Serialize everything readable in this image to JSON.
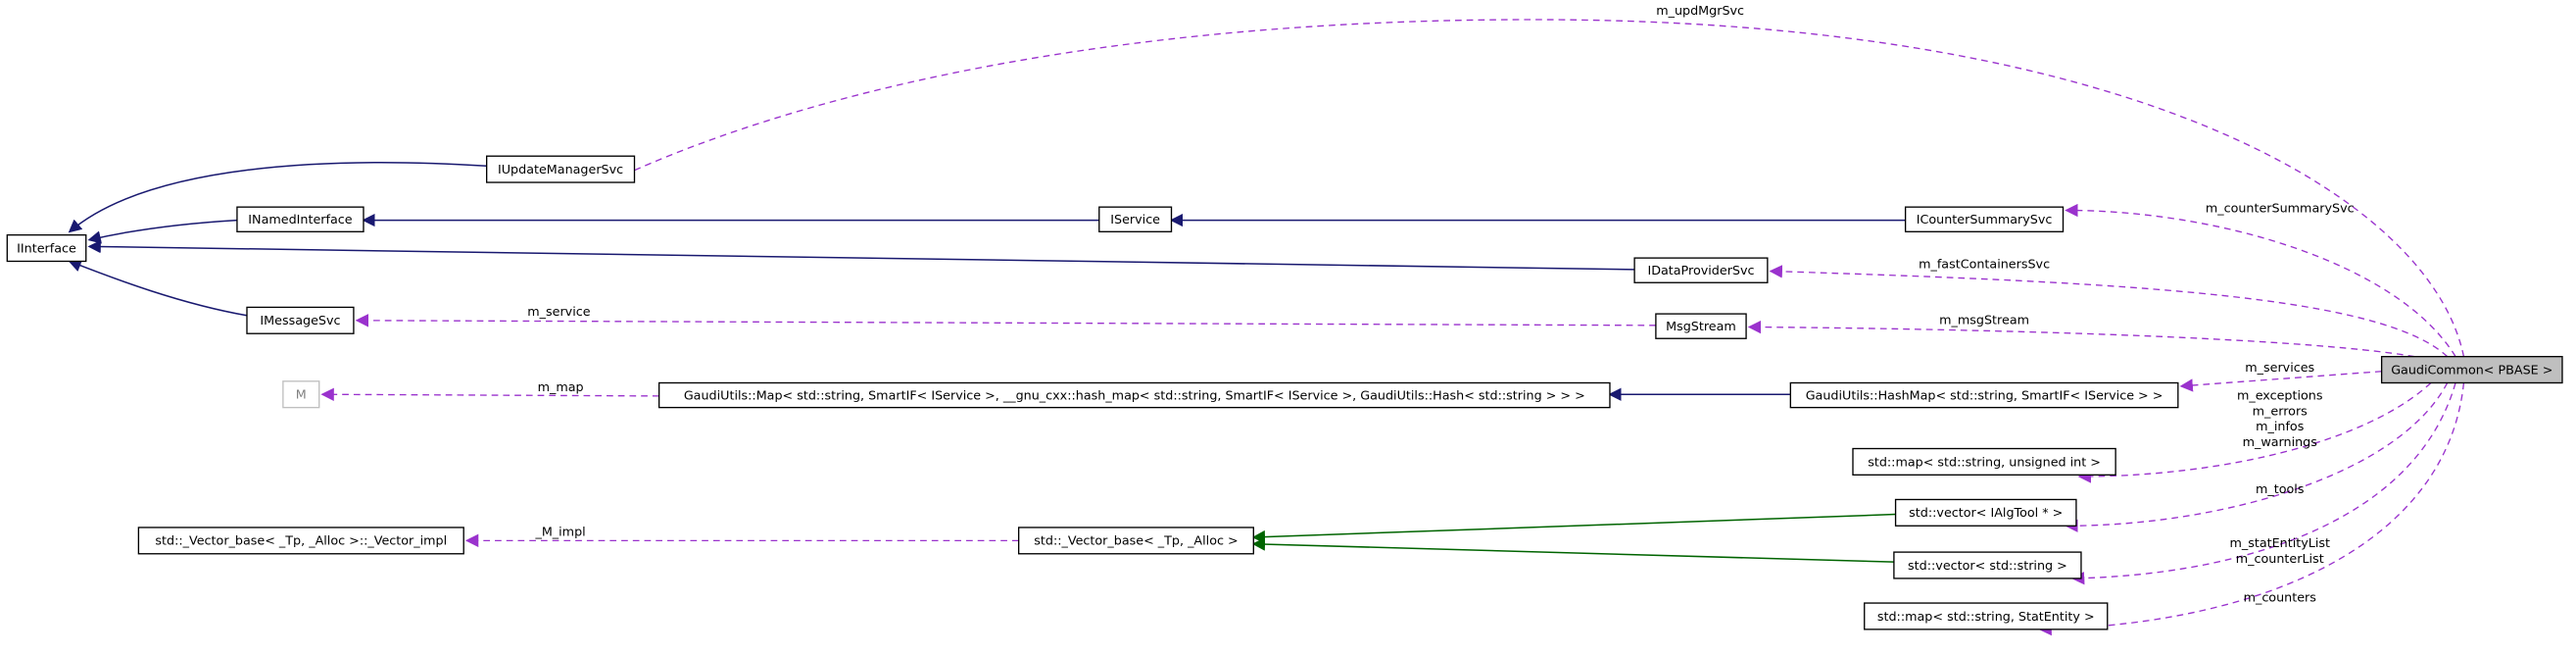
{
  "nodes": [
    {
      "label": "IInterface"
    },
    {
      "label": "IUpdateManagerSvc"
    },
    {
      "label": "INamedInterface"
    },
    {
      "label": "IService"
    },
    {
      "label": "ICounterSummarySvc"
    },
    {
      "label": "IDataProviderSvc"
    },
    {
      "label": "IMessageSvc"
    },
    {
      "label": "MsgStream"
    },
    {
      "label": "GaudiCommon< PBASE >"
    },
    {
      "label": "M"
    },
    {
      "label": "GaudiUtils::Map< std::string, SmartIF< IService >, __gnu_cxx::hash_map< std::string, SmartIF< IService >, GaudiUtils::Hash< std::string > > >"
    },
    {
      "label": "GaudiUtils::HashMap< std::string, SmartIF< IService > >"
    },
    {
      "label": "std::map< std::string, unsigned int >"
    },
    {
      "label": "std::vector< IAlgTool * >"
    },
    {
      "label": "std::_Vector_base< _Tp, _Alloc >::_Vector_impl"
    },
    {
      "label": "std::_Vector_base< _Tp, _Alloc >"
    },
    {
      "label": "std::vector< std::string >"
    },
    {
      "label": "std::map< std::string, StatEntity >"
    }
  ],
  "edges": [
    {
      "label": [
        "m_updMgrSvc"
      ]
    },
    {
      "label": [
        "m_counterSummarySvc"
      ]
    },
    {
      "label": [
        "m_fastContainersSvc"
      ]
    },
    {
      "label": [
        "m_service"
      ]
    },
    {
      "label": [
        "m_msgStream"
      ]
    },
    {
      "label": [
        "m_services"
      ]
    },
    {
      "label": [
        "m_map"
      ]
    },
    {
      "label": [
        "m_exceptions",
        "m_errors",
        "m_infos",
        "m_warnings"
      ]
    },
    {
      "label": [
        "m_tools"
      ]
    },
    {
      "label": [
        "_M_impl"
      ]
    },
    {
      "label": [
        "m_statEntityList",
        "m_counterList"
      ]
    },
    {
      "label": [
        "m_counters"
      ]
    }
  ]
}
